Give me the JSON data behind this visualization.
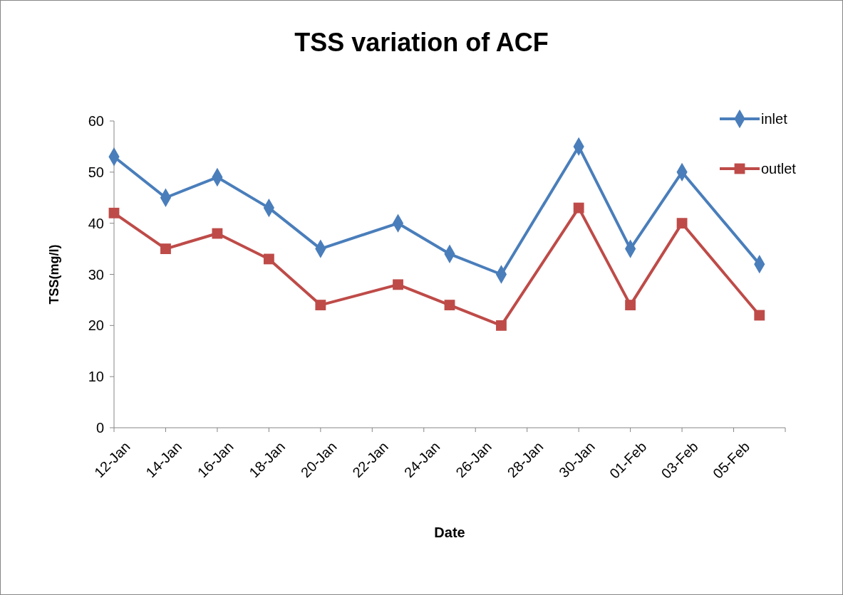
{
  "chart_data": {
    "type": "line",
    "title": "TSS variation of  ACF",
    "xlabel": "Date",
    "ylabel": "TSS(mg/l)",
    "x": [
      "--01-12",
      "--01-14",
      "--01-16",
      "--01-18",
      "--01-20",
      "--01-23",
      "--01-25",
      "--01-27",
      "--01-30",
      "--02-01",
      "--02-03",
      "--02-06"
    ],
    "xlim": [
      "--01-12",
      "--02-07"
    ],
    "xticks": [
      {
        "value": "--01-12",
        "label": "12-Jan"
      },
      {
        "value": "--01-14",
        "label": "14-Jan"
      },
      {
        "value": "--01-16",
        "label": "16-Jan"
      },
      {
        "value": "--01-18",
        "label": "18-Jan"
      },
      {
        "value": "--01-20",
        "label": "20-Jan"
      },
      {
        "value": "--01-22",
        "label": "22-Jan"
      },
      {
        "value": "--01-24",
        "label": "24-Jan"
      },
      {
        "value": "--01-26",
        "label": "26-Jan"
      },
      {
        "value": "--01-28",
        "label": "28-Jan"
      },
      {
        "value": "--01-30",
        "label": "30-Jan"
      },
      {
        "value": "--02-01",
        "label": "01-Feb"
      },
      {
        "value": "--02-03",
        "label": "03-Feb"
      },
      {
        "value": "--02-05",
        "label": "05-Feb"
      },
      {
        "value": "--02-07",
        "label": null
      }
    ],
    "ylim": [
      0,
      60
    ],
    "yticks": [
      0,
      10,
      20,
      30,
      40,
      50,
      60
    ],
    "grid": false,
    "legend": "right",
    "line_style": "solid",
    "series": [
      {
        "name": "inlet",
        "color": "#4a7ebb",
        "marker": "diamond",
        "values": [
          53,
          45,
          49,
          43,
          35,
          40,
          34,
          30,
          55,
          35,
          50,
          32
        ]
      },
      {
        "name": "outlet",
        "color": "#be4b48",
        "marker": "square",
        "values": [
          42,
          35,
          38,
          33,
          24,
          28,
          24,
          20,
          43,
          24,
          40,
          22
        ]
      }
    ]
  }
}
